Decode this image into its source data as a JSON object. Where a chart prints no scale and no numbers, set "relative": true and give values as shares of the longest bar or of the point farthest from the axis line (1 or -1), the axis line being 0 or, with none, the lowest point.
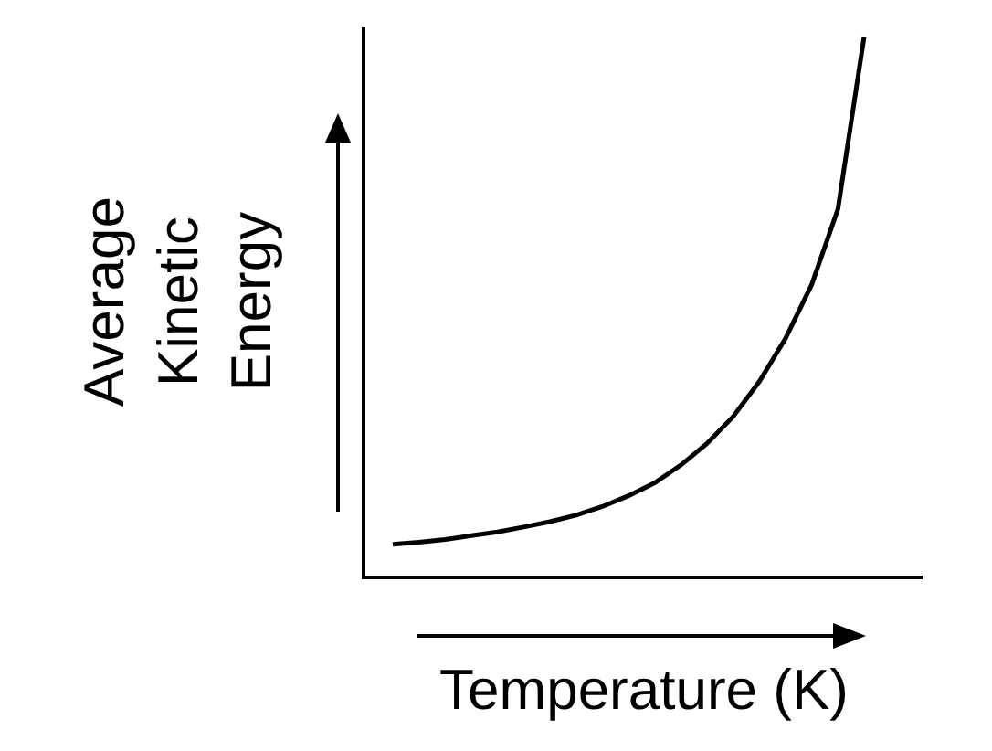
{
  "chart_data": {
    "type": "line",
    "relative": true,
    "xlabel": "Temperature (K)",
    "ylabel": "Average Kinetic Energy",
    "color": "#000000",
    "marker": "none",
    "grid": false,
    "legend": false,
    "categories": [
      null,
      null,
      null,
      null,
      null,
      null,
      null,
      null,
      null,
      null,
      null,
      null,
      null,
      null,
      null,
      null,
      null,
      null,
      null
    ],
    "values": [
      0.058,
      0.062,
      0.067,
      0.074,
      0.081,
      0.09,
      0.1,
      0.112,
      0.128,
      0.148,
      0.172,
      0.205,
      0.245,
      0.295,
      0.36,
      0.44,
      0.54,
      0.68,
      1.0
    ]
  }
}
